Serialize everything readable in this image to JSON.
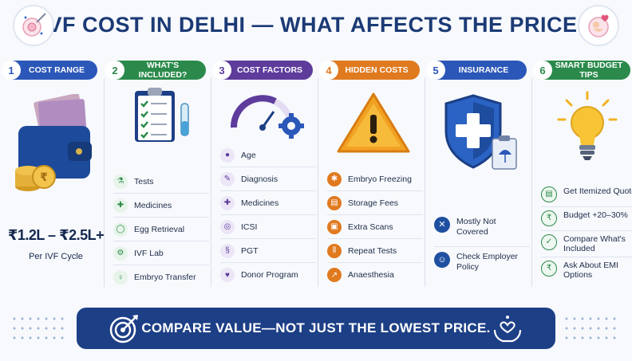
{
  "header": {
    "title": "IVF COST IN DELHI — WHAT AFFECTS THE PRICE?"
  },
  "colors": {
    "navy": "#1b3a75",
    "blue": "#2b57b8",
    "green": "#2b8a4b",
    "purple": "#5d3c9c",
    "orange": "#e07a1f",
    "shield_blue": "#1f4fa0",
    "banner": "#1d3f86"
  },
  "columns": [
    {
      "number": "1",
      "title": "COST RANGE",
      "color": "#2b57b8",
      "icon": "wallet-money-icon",
      "price": "₹1.2L – ₹2.5L+",
      "price_sub": "Per IVF Cycle"
    },
    {
      "number": "2",
      "title": "WHAT'S INCLUDED?",
      "color": "#2b8a4b",
      "icon": "clipboard-checklist-icon",
      "items": [
        "Tests",
        "Medicines",
        "Egg Retrieval",
        "IVF Lab",
        "Embryo Transfer"
      ]
    },
    {
      "number": "3",
      "title": "COST FACTORS",
      "color": "#5d3c9c",
      "icon": "gauge-gear-icon",
      "items": [
        "Age",
        "Diagnosis",
        "Medicines",
        "ICSI",
        "PGT",
        "Donor Program"
      ]
    },
    {
      "number": "4",
      "title": "HIDDEN COSTS",
      "color": "#e07a1f",
      "icon": "warning-triangle-icon",
      "items": [
        "Embryo Freezing",
        "Storage Fees",
        "Extra Scans",
        "Repeat Tests",
        "Anaesthesia"
      ]
    },
    {
      "number": "5",
      "title": "INSURANCE",
      "color": "#2b57b8",
      "icon": "medical-shield-icon",
      "items": [
        "Mostly Not Covered",
        "Check Employer Policy"
      ]
    },
    {
      "number": "6",
      "title": "SMART BUDGET TIPS",
      "color": "#2b8a4b",
      "icon": "lightbulb-icon",
      "items": [
        "Get Itemized Quote",
        "Budget +20–30%",
        "Compare What's Included",
        "Ask About EMI Options"
      ]
    }
  ],
  "banner": {
    "text": "COMPARE VALUE—NOT JUST THE LOWEST PRICE."
  }
}
